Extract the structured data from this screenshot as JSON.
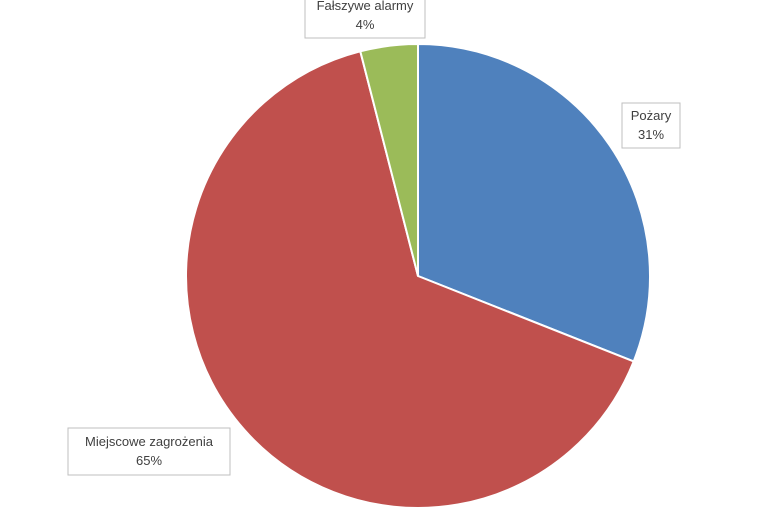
{
  "chart_data": {
    "type": "pie",
    "categories": [
      "Pożary",
      "Miejscowe zagrożenia",
      "Fałszywe alarmy"
    ],
    "values": [
      31,
      65,
      4
    ],
    "value_labels": [
      "31%",
      "65%",
      "4%"
    ],
    "colors": [
      "#4f81bd",
      "#c0504d",
      "#9bbb59"
    ]
  }
}
